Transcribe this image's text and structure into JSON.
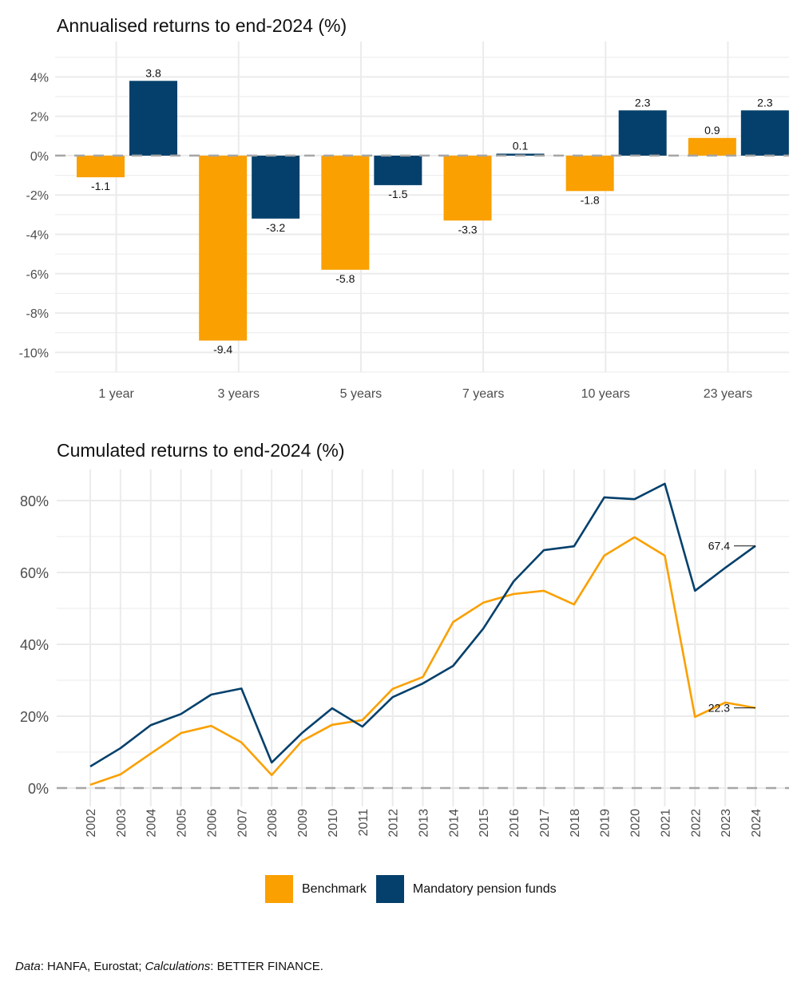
{
  "colors": {
    "benchmark": "#FAA000",
    "mandatory": "#04406B",
    "grid": "#EBEBEB",
    "zero_line": "#A6A6A6"
  },
  "chart_data": [
    {
      "type": "bar",
      "title": "Annualised returns to end-2024 (%)",
      "xlabel": "",
      "ylabel": "",
      "categories": [
        "1 year",
        "3 years",
        "5 years",
        "7 years",
        "10 years",
        "23 years"
      ],
      "series": [
        {
          "name": "Benchmark",
          "values": [
            -1.1,
            -9.4,
            -5.8,
            -3.3,
            -1.8,
            0.9
          ]
        },
        {
          "name": "Mandatory pension funds",
          "values": [
            3.8,
            -3.2,
            -1.5,
            0.1,
            2.3,
            2.3
          ]
        }
      ],
      "data_labels": {
        "Benchmark": [
          "-1.1",
          "-9.4",
          "-5.8",
          "-3.3",
          "-1.8",
          "0.9"
        ],
        "Mandatory pension funds": [
          "3.8",
          "-3.2",
          "-1.5",
          "0.1",
          "2.3",
          "2.3"
        ]
      },
      "yticks": [
        4,
        2,
        0,
        -2,
        -4,
        -6,
        -8,
        -10
      ],
      "ytick_labels": [
        "4%",
        "2%",
        "0%",
        "-2%",
        "-4%",
        "-6%",
        "-8%",
        "-10%"
      ],
      "ylim": [
        -11,
        5.8
      ],
      "grid": true,
      "zero_line": "dashed"
    },
    {
      "type": "line",
      "title": "Cumulated returns to end-2024 (%)",
      "xlabel": "",
      "ylabel": "",
      "x": [
        "2002",
        "2003",
        "2004",
        "2005",
        "2006",
        "2007",
        "2008",
        "2009",
        "2010",
        "2011",
        "2012",
        "2013",
        "2014",
        "2015",
        "2016",
        "2017",
        "2018",
        "2019",
        "2020",
        "2021",
        "2022",
        "2023",
        "2024"
      ],
      "series": [
        {
          "name": "Benchmark",
          "values": [
            0.9,
            3.8,
            9.6,
            15.3,
            17.3,
            12.7,
            3.6,
            13.1,
            17.6,
            18.9,
            27.6,
            30.9,
            46.2,
            51.6,
            54.0,
            54.9,
            51.1,
            64.7,
            69.8,
            64.7,
            19.8,
            23.8,
            22.3
          ]
        },
        {
          "name": "Mandatory pension funds",
          "values": [
            6.0,
            11.1,
            17.5,
            20.6,
            26.0,
            27.7,
            7.1,
            15.3,
            22.2,
            17.1,
            25.3,
            29.1,
            34.0,
            44.4,
            57.5,
            66.2,
            67.3,
            80.9,
            80.4,
            84.7,
            54.9,
            61.3,
            67.4
          ]
        }
      ],
      "end_labels": {
        "Benchmark": "22.3",
        "Mandatory pension funds": "67.4"
      },
      "yticks": [
        0,
        20,
        40,
        60,
        80
      ],
      "ytick_labels": [
        "0%",
        "20%",
        "40%",
        "60%",
        "80%"
      ],
      "ylim": [
        -5,
        88
      ],
      "grid": true,
      "zero_line": "dashed"
    }
  ],
  "legend": {
    "position": "bottom",
    "items": [
      {
        "label": "Benchmark",
        "color": "#FAA000"
      },
      {
        "label": "Mandatory pension funds",
        "color": "#04406B"
      }
    ]
  },
  "footer": {
    "data_label": "Data",
    "data_text": ": HANFA, Eurostat; ",
    "calc_label": "Calculations",
    "calc_text": ": BETTER FINANCE."
  }
}
